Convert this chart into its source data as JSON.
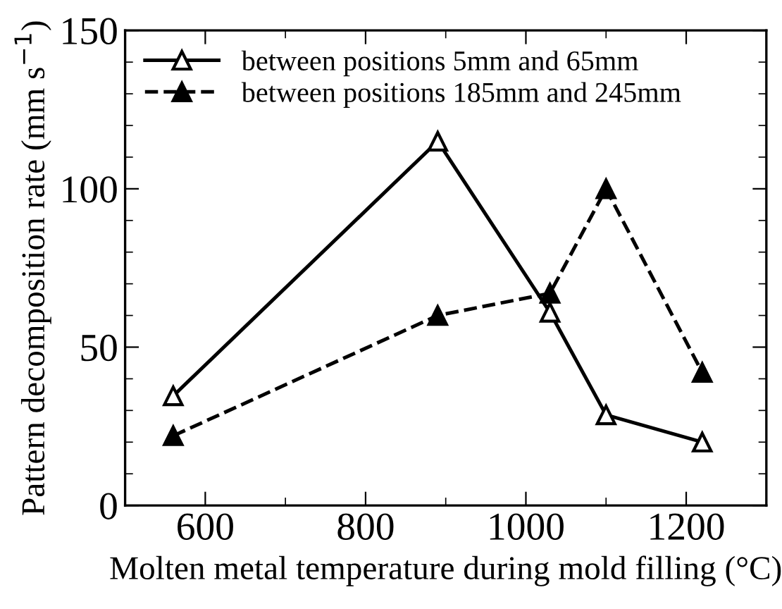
{
  "chart_data": {
    "type": "line",
    "xlabel": "Molten metal temperature during mold filling (°C)",
    "ylabel": "Pattern decomposition rate (mm s$^{−1}$)",
    "x": [
      560,
      890,
      1030,
      1100,
      1220
    ],
    "series": [
      {
        "name": "between positions 5mm and 65mm",
        "color": "#000000",
        "values": [
          34.6,
          115,
          61,
          28.6,
          20
        ],
        "marker": "triangle",
        "line_style": "solid"
      },
      {
        "name": "between positions 185mm and 245mm",
        "color": "#000000",
        "values": [
          22,
          60,
          67,
          100,
          42
        ],
        "marker": "triangle",
        "line_style": "dashed"
      }
    ],
    "xlim": [
      500,
      1300
    ],
    "xticks": [
      600,
      800,
      1000,
      1200
    ],
    "ylim": [
      0,
      150
    ],
    "yticks": [
      0,
      50,
      100,
      150
    ],
    "grid": false,
    "legend": "top left"
  }
}
